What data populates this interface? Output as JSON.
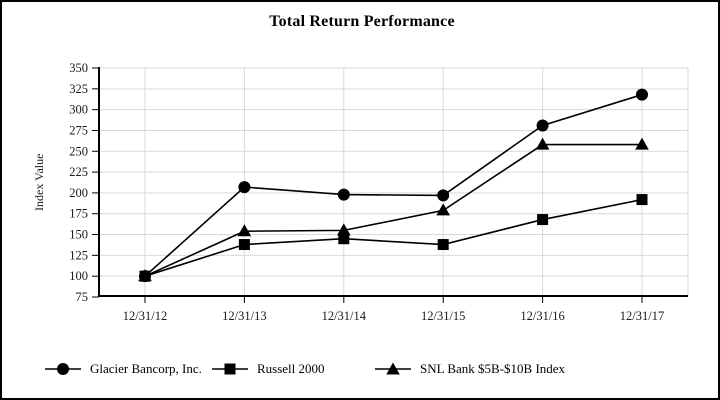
{
  "chart_data": {
    "type": "line",
    "title": "Total Return Performance",
    "xlabel": "",
    "ylabel": "Index Value",
    "categories": [
      "12/31/12",
      "12/31/13",
      "12/31/14",
      "12/31/15",
      "12/31/16",
      "12/31/17"
    ],
    "series": [
      {
        "name": "Glacier Bancorp, Inc.",
        "marker": "circle",
        "values": [
          100,
          207,
          198,
          197,
          281,
          318
        ]
      },
      {
        "name": "Russell 2000",
        "marker": "square",
        "values": [
          100,
          138,
          145,
          138,
          168,
          192
        ]
      },
      {
        "name": "SNL Bank $5B-$10B Index",
        "marker": "triangle",
        "values": [
          100,
          154,
          155,
          179,
          258,
          258
        ]
      }
    ],
    "ylim": [
      75,
      350
    ],
    "yticks": [
      75,
      100,
      125,
      150,
      175,
      200,
      225,
      250,
      275,
      300,
      325,
      350
    ],
    "grid": true,
    "legend_position": "bottom",
    "line_color": "#000000",
    "marker_color": "#000000",
    "grid_color": "#d9d9d9",
    "axis_color": "#000000",
    "tick_label_color": "#1a1a1a"
  }
}
